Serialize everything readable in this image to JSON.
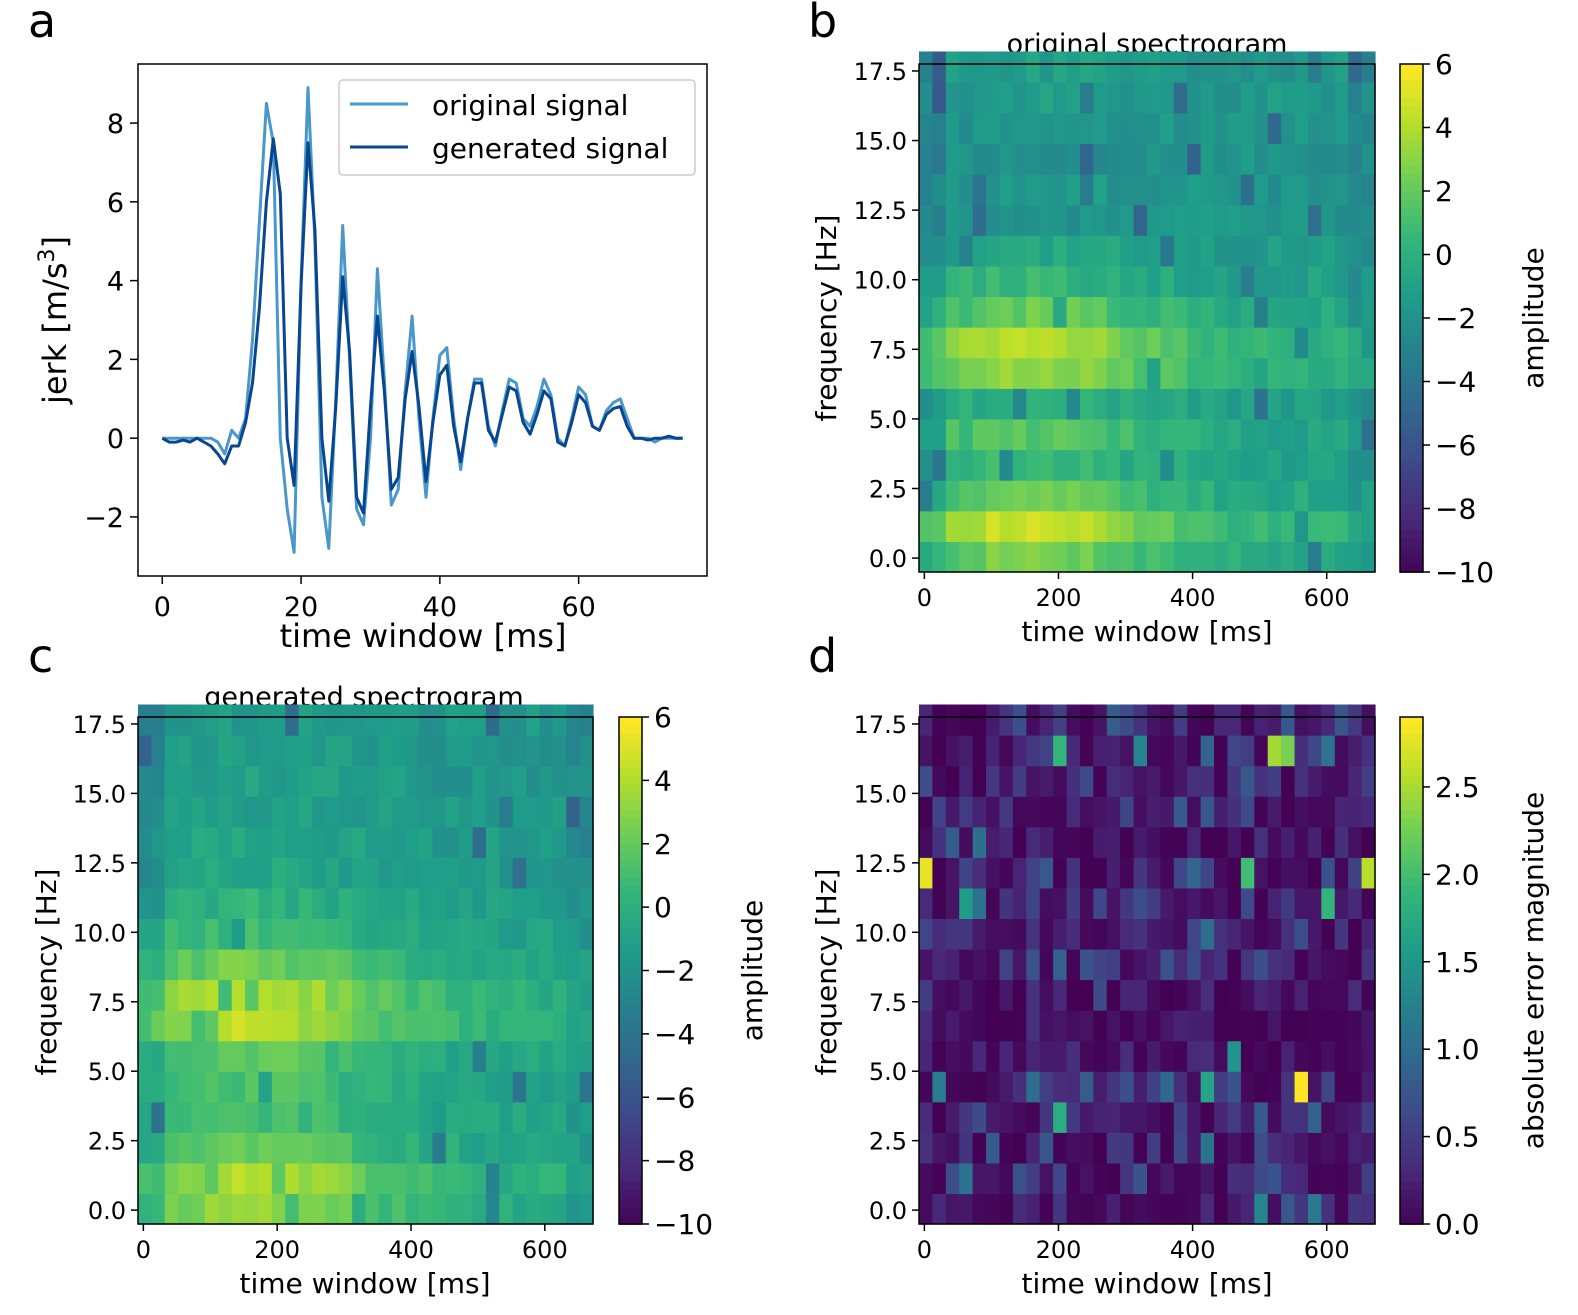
{
  "colors": {
    "original": "#4a98c9",
    "generated": "#08468f",
    "viridis": [
      "#440154",
      "#482878",
      "#3e4989",
      "#31688e",
      "#26828e",
      "#1f9e89",
      "#35b779",
      "#6ece58",
      "#b5de2b",
      "#fde725"
    ]
  },
  "chart_data": [
    {
      "panel": "a",
      "type": "line",
      "title": "",
      "xlabel": "time window [ms]",
      "ylabel": "jerk [m/s",
      "ylabel_sup": "3",
      "ylabel_end": "]",
      "xlim": [
        -3.5,
        78.5
      ],
      "ylim": [
        -3.5,
        9.5
      ],
      "xticks": [
        0,
        20,
        40,
        60
      ],
      "xtick_labels": [
        "0",
        "20",
        "40",
        "60"
      ],
      "yticks": [
        -2,
        0,
        2,
        4,
        6,
        8
      ],
      "ytick_labels": [
        "−2",
        "0",
        "2",
        "4",
        "6",
        "8"
      ],
      "legend": [
        "original signal",
        "generated signal"
      ],
      "legend_position": "top-right",
      "x": [
        0,
        1,
        2,
        3,
        4,
        5,
        6,
        7,
        8,
        9,
        10,
        11,
        12,
        13,
        14,
        15,
        16,
        17,
        18,
        19,
        20,
        21,
        22,
        23,
        24,
        25,
        26,
        27,
        28,
        29,
        30,
        31,
        32,
        33,
        34,
        35,
        36,
        37,
        38,
        39,
        40,
        41,
        42,
        43,
        44,
        45,
        46,
        47,
        48,
        49,
        50,
        51,
        52,
        53,
        54,
        55,
        56,
        57,
        58,
        59,
        60,
        61,
        62,
        63,
        64,
        65,
        66,
        67,
        68,
        69,
        70,
        71,
        72,
        73,
        74,
        75
      ],
      "series": [
        {
          "name": "original signal",
          "values": [
            0,
            0,
            0,
            0,
            0,
            0,
            0,
            0,
            -0.1,
            -0.4,
            0.2,
            0,
            0.5,
            2.5,
            5.5,
            8.5,
            7.5,
            0,
            -1.8,
            -2.9,
            4,
            8.9,
            5,
            -1.5,
            -2.8,
            1,
            5.4,
            2,
            -1.8,
            -2.2,
            0,
            4.3,
            1.5,
            -1.7,
            -1.3,
            1.2,
            3.1,
            0.5,
            -1.5,
            0.5,
            2.1,
            2.3,
            0.5,
            -0.8,
            0.5,
            1.5,
            1.5,
            0.3,
            -0.2,
            0.7,
            1.5,
            1.4,
            0.5,
            0.3,
            0.8,
            1.5,
            1.1,
            0,
            -0.2,
            0.5,
            1.3,
            1.1,
            0.3,
            0.2,
            0.7,
            0.9,
            1,
            0.5,
            0,
            0,
            0,
            -0.1,
            0,
            0,
            0,
            0
          ]
        },
        {
          "name": "generated signal",
          "values": [
            0,
            -0.1,
            -0.1,
            -0.05,
            -0.1,
            0,
            -0.1,
            -0.2,
            -0.4,
            -0.65,
            -0.2,
            -0.2,
            0.4,
            1.4,
            3.3,
            6,
            7.6,
            6.2,
            0,
            -1.2,
            3.9,
            7.5,
            5.3,
            0,
            -1.6,
            0.8,
            4.1,
            2.2,
            -1.5,
            -1.9,
            0.8,
            3.1,
            1.2,
            -1.3,
            -1,
            1,
            2.2,
            0.8,
            -1.1,
            0.4,
            1.6,
            1.85,
            0.3,
            -0.6,
            0.5,
            1.4,
            1.4,
            0.2,
            -0.1,
            0.6,
            1.3,
            1.2,
            0.4,
            0.1,
            0.6,
            1.2,
            1,
            -0.1,
            -0.2,
            0.4,
            1.1,
            0.9,
            0.3,
            0.2,
            0.6,
            0.75,
            0.8,
            0.3,
            0,
            0,
            -0.05,
            0,
            0,
            0.05,
            0,
            0
          ]
        }
      ]
    },
    {
      "panel": "b",
      "type": "heatmap",
      "title": "original spectrogram",
      "xlabel": "time window [ms]",
      "ylabel": "frequency [Hz]",
      "colorbar_label": "amplitude",
      "vmin": -10,
      "vmax": 6,
      "colorbar_ticks": [
        6,
        4,
        2,
        0,
        -2,
        -4,
        -6,
        -8,
        -10
      ],
      "colorbar_tick_labels": [
        "6",
        "4",
        "2",
        "0",
        "−2",
        "−4",
        "−6",
        "−8",
        "−10"
      ],
      "xticks": [
        0,
        200,
        400,
        600
      ],
      "xtick_labels": [
        "0",
        "200",
        "400",
        "600"
      ],
      "yticks": [
        0,
        2.5,
        5,
        7.5,
        10,
        12.5,
        15,
        17.5
      ],
      "ytick_labels": [
        "0.0",
        "2.5",
        "5.0",
        "7.5",
        "10.0",
        "12.5",
        "15.0",
        "17.5"
      ],
      "xlim": [
        -8,
        672
      ],
      "ylim": [
        -0.5,
        17.75
      ],
      "time_bins": 34,
      "freq_bins": 17,
      "freq_step": 1.1,
      "profile_rows": [
        2.3,
        4.0,
        2.0,
        0.6,
        1.5,
        0.2,
        3.0,
        3.6,
        1.8,
        0.5,
        -0.5,
        -1.4,
        -1.2,
        -1.6,
        -1.4,
        -1.0,
        -0.9
      ],
      "seed": 7
    },
    {
      "panel": "c",
      "type": "heatmap",
      "title": "generated spectrogram",
      "xlabel": "time window [ms]",
      "ylabel": "frequency [Hz]",
      "colorbar_label": "amplitude",
      "vmin": -10,
      "vmax": 6,
      "colorbar_ticks": [
        6,
        4,
        2,
        0,
        -2,
        -4,
        -6,
        -8,
        -10
      ],
      "colorbar_tick_labels": [
        "6",
        "4",
        "2",
        "0",
        "−2",
        "−4",
        "−6",
        "−8",
        "−10"
      ],
      "xticks": [
        0,
        200,
        400,
        600
      ],
      "xtick_labels": [
        "0",
        "200",
        "400",
        "600"
      ],
      "yticks": [
        0,
        2.5,
        5,
        7.5,
        10,
        12.5,
        15,
        17.5
      ],
      "ytick_labels": [
        "0.0",
        "2.5",
        "5.0",
        "7.5",
        "10.0",
        "12.5",
        "15.0",
        "17.5"
      ],
      "xlim": [
        -8,
        672
      ],
      "ylim": [
        -0.5,
        17.75
      ],
      "time_bins": 34,
      "freq_bins": 17,
      "freq_step": 1.1,
      "profile_rows": [
        3.0,
        3.5,
        1.8,
        1.0,
        1.2,
        1.6,
        3.8,
        3.6,
        2.0,
        0.8,
        0.2,
        -0.4,
        -0.6,
        -0.8,
        -0.9,
        -1.0,
        -1.0
      ],
      "seed": 11
    },
    {
      "panel": "d",
      "type": "heatmap",
      "title": "",
      "xlabel": "time window [ms]",
      "ylabel": "frequency [Hz]",
      "colorbar_label": "absolute error magnitude",
      "vmin": 0,
      "vmax": 2.9,
      "colorbar_ticks": [
        2.5,
        2.0,
        1.5,
        1.0,
        0.5,
        0.0
      ],
      "colorbar_tick_labels": [
        "2.5",
        "2.0",
        "1.5",
        "1.0",
        "0.5",
        "0.0"
      ],
      "xticks": [
        0,
        200,
        400,
        600
      ],
      "xtick_labels": [
        "0",
        "200",
        "400",
        "600"
      ],
      "yticks": [
        0,
        2.5,
        5,
        7.5,
        10,
        12.5,
        15,
        17.5
      ],
      "ytick_labels": [
        "0.0",
        "2.5",
        "5.0",
        "7.5",
        "10.0",
        "12.5",
        "15.0",
        "17.5"
      ],
      "xlim": [
        -8,
        672
      ],
      "ylim": [
        -0.5,
        17.75
      ],
      "time_bins": 34,
      "freq_bins": 17,
      "freq_step": 1.1,
      "highlights": [
        {
          "t": 0,
          "f": 11,
          "v": 2.8
        },
        {
          "t": 33,
          "f": 11,
          "v": 2.6
        },
        {
          "t": 26,
          "f": 15,
          "v": 2.5
        },
        {
          "t": 27,
          "f": 15,
          "v": 2.3
        },
        {
          "t": 28,
          "f": 4,
          "v": 2.9
        },
        {
          "t": 10,
          "f": 15,
          "v": 1.9
        },
        {
          "t": 24,
          "f": 11,
          "v": 2.0
        },
        {
          "t": 10,
          "f": 3,
          "v": 1.8
        },
        {
          "t": 21,
          "f": 4,
          "v": 1.7
        },
        {
          "t": 23,
          "f": 5,
          "v": 1.5
        },
        {
          "t": 30,
          "f": 10,
          "v": 1.9
        },
        {
          "t": 3,
          "f": 10,
          "v": 1.6
        }
      ],
      "seed": 23
    }
  ],
  "panels": {
    "a": {
      "label": "a"
    },
    "b": {
      "label": "b"
    },
    "c": {
      "label": "c"
    },
    "d": {
      "label": "d"
    }
  }
}
